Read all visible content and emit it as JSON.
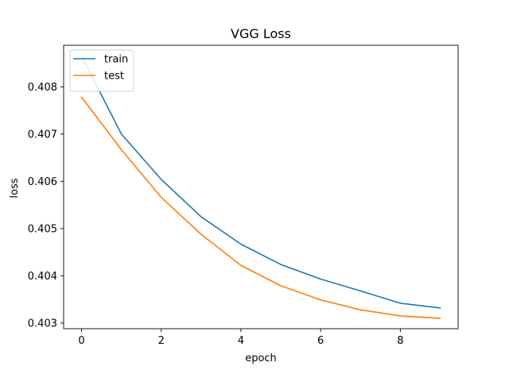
{
  "chart_data": {
    "type": "line",
    "title": "VGG Loss",
    "xlabel": "epoch",
    "ylabel": "loss",
    "x": [
      0,
      1,
      2,
      3,
      4,
      5,
      6,
      7,
      8,
      9
    ],
    "series": [
      {
        "name": "train",
        "color": "#1f77b4",
        "values": [
          0.40865,
          0.407,
          0.40604,
          0.40525,
          0.40467,
          0.40424,
          0.40393,
          0.40368,
          0.40342,
          0.40332
        ]
      },
      {
        "name": "test",
        "color": "#ff7f0e",
        "values": [
          0.40778,
          0.40667,
          0.40566,
          0.40488,
          0.40422,
          0.40379,
          0.40349,
          0.40328,
          0.40315,
          0.4031
        ]
      }
    ],
    "xlim": [
      -0.45,
      9.45
    ],
    "ylim": [
      0.40288,
      0.40888
    ],
    "xticks": [
      0,
      2,
      4,
      6,
      8
    ],
    "xtick_labels": [
      "0",
      "2",
      "4",
      "6",
      "8"
    ],
    "yticks": [
      0.403,
      0.404,
      0.405,
      0.406,
      0.407,
      0.408
    ],
    "ytick_labels": [
      "0.403",
      "0.404",
      "0.405",
      "0.406",
      "0.407",
      "0.408"
    ],
    "grid": false,
    "legend_position": "top-left"
  }
}
